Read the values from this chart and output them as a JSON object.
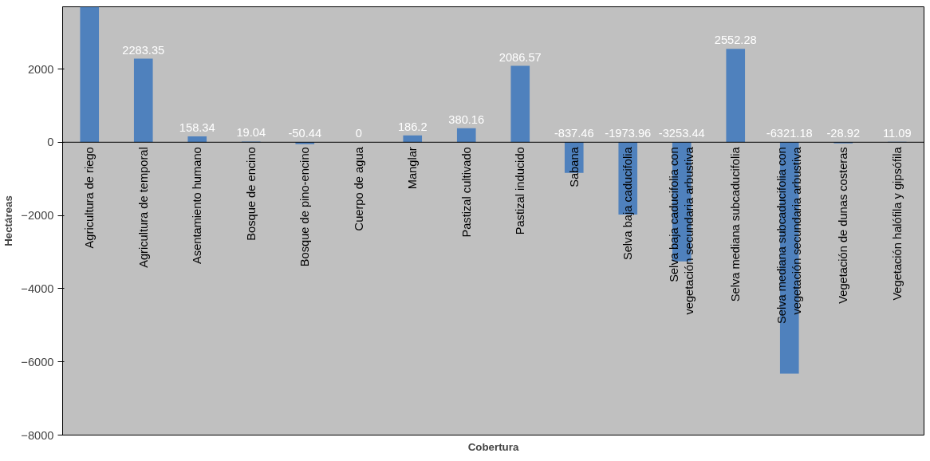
{
  "chart_data": {
    "type": "bar",
    "xlabel": "Cobertura",
    "ylabel": "Hectáreas",
    "categories": [
      "Agricultura de riego",
      "Agricultura de temporal",
      "Asentamiento humano",
      "Bosque de encino",
      "Bosque de pino-encino",
      "Cuerpo de agua",
      "Manglar",
      "Pastizal cultivado",
      "Pastizal inducido",
      "Sabana",
      "Selva baja caducifolia",
      "Selva baja caducifolia con vegetación secundaria arbustiva",
      "Selva mediana subcaducifolia",
      "Selva mediana subcaducifolia con vegetación secundaria arbustiva",
      "Vegetación de dunas costeras",
      "Vegetación halófila y gipsófila"
    ],
    "values": [
      3700,
      2283.35,
      158.34,
      19.04,
      -50.44,
      0,
      186.2,
      380.16,
      2086.57,
      -837.46,
      -1973.96,
      -3253.44,
      2552.28,
      -6321.18,
      -28.92,
      11.09
    ],
    "value_labels": [
      null,
      "2283.35",
      "158.34",
      "19.04",
      "-50.44",
      "0",
      "186.2",
      "380.16",
      "2086.57",
      "-837.46",
      "-1973.96",
      "-3253.44",
      "2552.28",
      "-6321.18",
      "-28.92",
      "11.09"
    ],
    "color": "#4f81bd",
    "ylim": [
      -8000,
      3700
    ],
    "yticks": [
      -8000,
      -6000,
      -4000,
      -2000,
      0,
      2000
    ],
    "grid": false
  }
}
